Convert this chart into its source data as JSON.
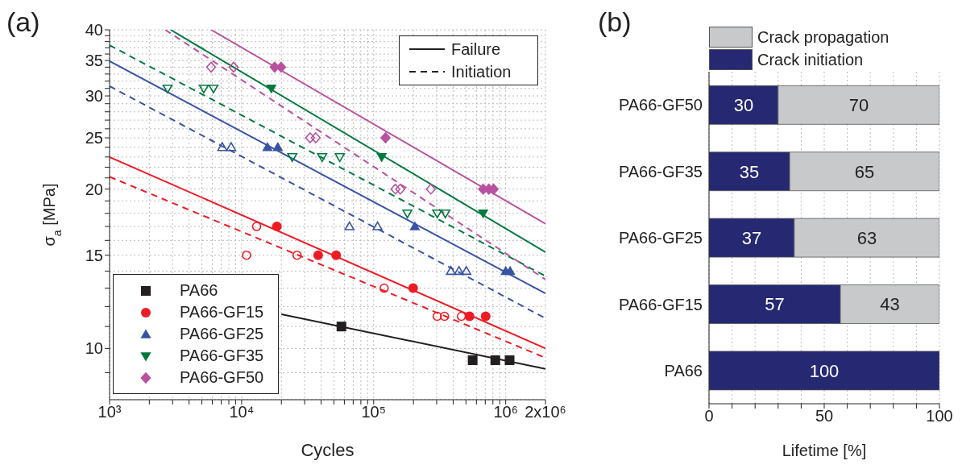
{
  "chart_data": [
    {
      "type": "scatter",
      "title": "(a)",
      "xlabel": "Cycles",
      "ylabel": "σ$_{a}$ [MPa]",
      "log": "xy",
      "xlim": [
        1000,
        2000000
      ],
      "ylim": [
        8,
        40
      ],
      "xticks": [
        {
          "value": 1000,
          "label": "10³"
        },
        {
          "value": 2000,
          "label": null
        },
        {
          "value": 3000,
          "label": null
        },
        {
          "value": 4000,
          "label": null
        },
        {
          "value": 5000,
          "label": null
        },
        {
          "value": 6000,
          "label": null
        },
        {
          "value": 7000,
          "label": null
        },
        {
          "value": 8000,
          "label": null
        },
        {
          "value": 9000,
          "label": null
        },
        {
          "value": 10000,
          "label": "10⁴"
        },
        {
          "value": 20000,
          "label": null
        },
        {
          "value": 30000,
          "label": null
        },
        {
          "value": 40000,
          "label": null
        },
        {
          "value": 50000,
          "label": null
        },
        {
          "value": 60000,
          "label": null
        },
        {
          "value": 70000,
          "label": null
        },
        {
          "value": 80000,
          "label": null
        },
        {
          "value": 90000,
          "label": null
        },
        {
          "value": 100000,
          "label": "10⁵"
        },
        {
          "value": 200000,
          "label": null
        },
        {
          "value": 300000,
          "label": null
        },
        {
          "value": 400000,
          "label": null
        },
        {
          "value": 500000,
          "label": null
        },
        {
          "value": 600000,
          "label": null
        },
        {
          "value": 700000,
          "label": null
        },
        {
          "value": 800000,
          "label": null
        },
        {
          "value": 900000,
          "label": null
        },
        {
          "value": 1000000,
          "label": "10⁶"
        },
        {
          "value": 2000000,
          "label": "2x10⁶"
        }
      ],
      "yticks": [
        {
          "value": 9,
          "label": null
        },
        10,
        {
          "value": 11,
          "label": null
        },
        {
          "value": 12,
          "label": null
        },
        {
          "value": 13,
          "label": null
        },
        {
          "value": 14,
          "label": null
        },
        15,
        {
          "value": 16,
          "label": null
        },
        {
          "value": 17,
          "label": null
        },
        {
          "value": 18,
          "label": null
        },
        {
          "value": 19,
          "label": null
        },
        20,
        {
          "value": 21,
          "label": null
        },
        {
          "value": 22,
          "label": null
        },
        {
          "value": 23,
          "label": null
        },
        {
          "value": 24,
          "label": null
        },
        25,
        {
          "value": 26,
          "label": null
        },
        {
          "value": 27,
          "label": null
        },
        {
          "value": 28,
          "label": null
        },
        {
          "value": 29,
          "label": null
        },
        30,
        {
          "value": 31,
          "label": null
        },
        {
          "value": 32,
          "label": null
        },
        {
          "value": 33,
          "label": null
        },
        {
          "value": 34,
          "label": null
        },
        35,
        {
          "value": 36,
          "label": null
        },
        {
          "value": 37,
          "label": null
        },
        {
          "value": 38,
          "label": null
        },
        {
          "value": 39,
          "label": null
        },
        40
      ],
      "grid": true,
      "legend": "bottom left",
      "annotations": [
        "Failure",
        "Initiation"
      ],
      "series": [
        {
          "name": "PA66",
          "type": "scatter",
          "marker": "square",
          "color": "#231f20",
          "x": [
            57000,
            562000,
            834000,
            1070000
          ],
          "values": [
            11,
            9.5,
            9.5,
            9.5
          ]
        },
        {
          "name": "PA66-GF15",
          "type": "scatter",
          "marker": "circle",
          "color": "#ed1c24",
          "x": [
            18500,
            38000,
            52000,
            199000,
            532000,
            705000
          ],
          "values": [
            17,
            15,
            15,
            13,
            11.5,
            11.5
          ]
        },
        {
          "name": "PA66-GF25",
          "type": "scatter",
          "marker": "triangle",
          "color": "#3953a4",
          "x": [
            15700,
            18800,
            205000,
            1000000,
            1080000
          ],
          "values": [
            24,
            24,
            17,
            14,
            14
          ]
        },
        {
          "name": "PA66-GF35",
          "type": "scatter",
          "marker": "triangle-down",
          "color": "#00793f",
          "x": [
            16800,
            115000,
            675000
          ],
          "values": [
            31,
            23,
            18
          ]
        },
        {
          "name": "PA66-GF50",
          "type": "scatter",
          "marker": "diamond",
          "color": "#b8529f",
          "x": [
            17800,
            19900,
            123000,
            675000,
            745000,
            810000
          ],
          "values": [
            34,
            34,
            25,
            20,
            20,
            20
          ]
        },
        {
          "type": "scatter",
          "marker": "circle-open",
          "color": "#ed1c24",
          "x": [
            10900,
            13000,
            26300,
            120000,
            303000,
            344000,
            462000
          ],
          "values": [
            15,
            17,
            15,
            13,
            11.5,
            11.5,
            11.5
          ]
        },
        {
          "type": "scatter",
          "marker": "triangle-open",
          "color": "#3953a4",
          "x": [
            7140,
            8330,
            65600,
            107000,
            385000,
            443000,
            503000
          ],
          "values": [
            24,
            24,
            17,
            17,
            14,
            14,
            14
          ]
        },
        {
          "type": "scatter",
          "marker": "triangle-down-open",
          "color": "#00793f",
          "x": [
            2750,
            5170,
            6120,
            24200,
            40700,
            55400,
            180000,
            303000,
            349000
          ],
          "values": [
            31,
            31,
            31,
            23,
            23,
            23,
            18,
            18,
            18
          ]
        },
        {
          "type": "scatter",
          "marker": "diamond-open",
          "color": "#b8529f",
          "x": [
            5870,
            8690,
            33000,
            36400,
            146000,
            159000,
            271000
          ],
          "values": [
            34,
            34,
            25,
            25,
            20,
            20,
            20
          ]
        },
        {
          "type": "line",
          "line_style": "solid",
          "color": "#231f20",
          "x": [
            20000,
            2000000
          ],
          "values": [
            11.6,
            9.15
          ]
        },
        {
          "type": "line",
          "line_style": "solid",
          "color": "#ed1c24",
          "x": [
            1000,
            2000000
          ],
          "values": [
            23,
            10
          ]
        },
        {
          "type": "line",
          "line_style": "dashed",
          "color": "#ed1c24",
          "x": [
            1000,
            2000000
          ],
          "values": [
            21.1,
            9.6
          ]
        },
        {
          "type": "line",
          "line_style": "solid",
          "color": "#3953a4",
          "x": [
            1000,
            2000000
          ],
          "values": [
            34.9,
            12.7
          ]
        },
        {
          "type": "line",
          "line_style": "dashed",
          "color": "#3953a4",
          "x": [
            1000,
            2000000
          ],
          "values": [
            31.3,
            11.4
          ]
        },
        {
          "type": "line",
          "line_style": "solid",
          "color": "#00793f",
          "x": [
            2900,
            2000000
          ],
          "values": [
            40,
            15.2
          ]
        },
        {
          "type": "line",
          "line_style": "dashed",
          "color": "#00793f",
          "x": [
            1000,
            2000000
          ],
          "values": [
            37.4,
            13.7
          ]
        },
        {
          "type": "line",
          "line_style": "solid",
          "color": "#b8529f",
          "x": [
            5870,
            2000000
          ],
          "values": [
            40,
            17.2
          ]
        },
        {
          "type": "line",
          "line_style": "dashed",
          "color": "#b8529f",
          "x": [
            2640,
            2000000
          ],
          "values": [
            40,
            13.5
          ]
        }
      ]
    },
    {
      "type": "bar",
      "title": "(b)",
      "orientation": "horizontal",
      "stacked": true,
      "xlabel": "Lifetime [%]",
      "categories": [
        "PA66-GF50",
        "PA66-GF35",
        "PA66-GF25",
        "PA66-GF15",
        "PA66"
      ],
      "xlim": [
        0,
        100
      ],
      "xticks": [
        0,
        {
          "value": 10,
          "label": null
        },
        {
          "value": 20,
          "label": null
        },
        {
          "value": 30,
          "label": null
        },
        {
          "value": 40,
          "label": null
        },
        50,
        {
          "value": 60,
          "label": null
        },
        {
          "value": 70,
          "label": null
        },
        {
          "value": 80,
          "label": null
        },
        {
          "value": 90,
          "label": null
        },
        100
      ],
      "grid": "x",
      "legend": "top",
      "data_labels": true,
      "series": [
        {
          "name": "Crack initiation",
          "color": "#262872",
          "values": [
            30,
            35,
            37,
            57,
            100
          ]
        },
        {
          "name": "Crack propagation",
          "color": "#c8c9cb",
          "values": [
            70,
            65,
            63,
            43,
            null
          ]
        }
      ]
    }
  ]
}
